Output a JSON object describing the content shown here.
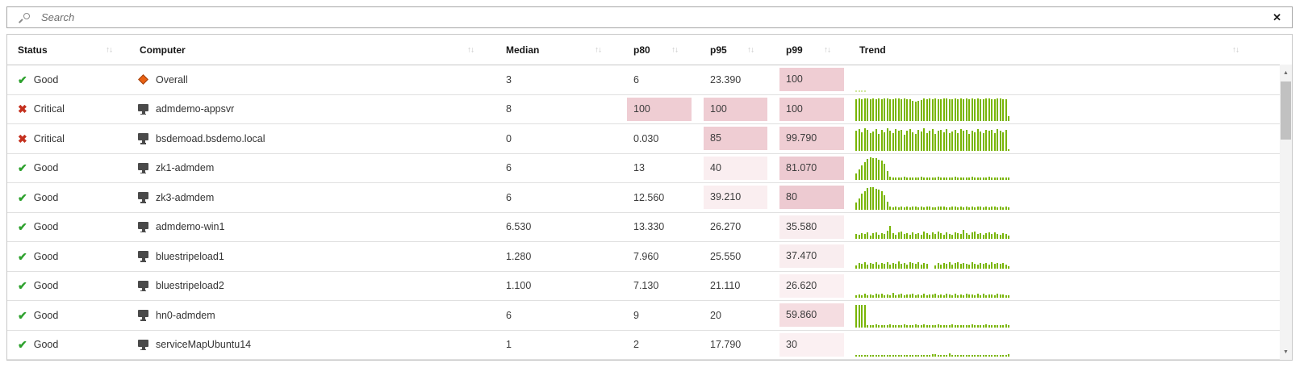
{
  "search": {
    "placeholder": "Search",
    "clear_icon": "✕"
  },
  "colors": {
    "bar_green": "#79b504",
    "bar_green_light": "#cfe79b",
    "heat_deep": "#edcad1",
    "heat_mid": "#f5dde1",
    "heat_light": "#faeef0"
  },
  "scrollbar": {
    "up_glyph": "▲",
    "down_glyph": "▼"
  },
  "table": {
    "sort_glyph": "↑↓",
    "status_glyphs": {
      "good": "✔",
      "critical": "✖"
    },
    "columns": [
      {
        "label": "Status"
      },
      {
        "label": "Computer"
      },
      {
        "label": "Median"
      },
      {
        "label": "p80"
      },
      {
        "label": "p95"
      },
      {
        "label": "p99"
      },
      {
        "label": "Trend"
      }
    ],
    "rows": [
      {
        "status": "Good",
        "kind": "good",
        "icon": "diamond",
        "computer": "Overall",
        "median": "3",
        "p80": {
          "v": "6"
        },
        "p95": {
          "v": "23.390"
        },
        "p99": {
          "v": "100",
          "bg": "#efcdd3"
        },
        "spark": {
          "color": "#cfe79b",
          "values": [
            5,
            5,
            5,
            5,
            0,
            0,
            0,
            0,
            0,
            0,
            0,
            0,
            0,
            0,
            0,
            0,
            0,
            0,
            0,
            0,
            0,
            0,
            0,
            0,
            0,
            0,
            0,
            0,
            0,
            0,
            0,
            0,
            0,
            0,
            0,
            0,
            0,
            0,
            0,
            0,
            0,
            0,
            0,
            0,
            0,
            0,
            0,
            0,
            0,
            0,
            0,
            0,
            0,
            0,
            0
          ]
        }
      },
      {
        "status": "Critical",
        "kind": "critical",
        "icon": "monitor",
        "computer": "admdemo-appsvr",
        "median": "8",
        "p80": {
          "v": "100",
          "bg": "#efcdd3"
        },
        "p95": {
          "v": "100",
          "bg": "#efcdd3"
        },
        "p99": {
          "v": "100",
          "bg": "#efcdd3"
        },
        "spark": {
          "color": "#79b504",
          "values": [
            98,
            100,
            97,
            100,
            99,
            96,
            100,
            98,
            100,
            97,
            99,
            100,
            96,
            98,
            100,
            99,
            97,
            100,
            98,
            96,
            90,
            86,
            88,
            92,
            100,
            98,
            99,
            97,
            100,
            96,
            98,
            100,
            99,
            97,
            98,
            100,
            96,
            99,
            98,
            100,
            97,
            99,
            96,
            100,
            98,
            97,
            99,
            100,
            98,
            96,
            99,
            100,
            97,
            98,
            22
          ]
        }
      },
      {
        "status": "Critical",
        "kind": "critical",
        "icon": "monitor",
        "computer": "bsdemoad.bsdemo.local",
        "median": "0",
        "p80": {
          "v": "0.030"
        },
        "p95": {
          "v": "85",
          "bg": "#efcdd3"
        },
        "p99": {
          "v": "99.790",
          "bg": "#efcdd3"
        },
        "spark": {
          "color": "#79b504",
          "values": [
            88,
            95,
            80,
            100,
            92,
            78,
            85,
            96,
            74,
            90,
            82,
            98,
            88,
            76,
            94,
            86,
            92,
            70,
            88,
            96,
            80,
            74,
            90,
            84,
            98,
            78,
            86,
            94,
            72,
            88,
            92,
            80,
            96,
            76,
            84,
            90,
            78,
            94,
            86,
            92,
            74,
            88,
            80,
            96,
            84,
            78,
            92,
            86,
            90,
            76,
            94,
            88,
            82,
            90,
            4
          ]
        }
      },
      {
        "status": "Good",
        "kind": "good",
        "icon": "monitor",
        "computer": "zk1-admdem",
        "median": "6",
        "p80": {
          "v": "13"
        },
        "p95": {
          "v": "40",
          "bg": "#faeef0"
        },
        "p99": {
          "v": "81.070",
          "bg": "#edcad1"
        },
        "spark": {
          "color": "#79b504",
          "values": [
            28,
            48,
            65,
            80,
            92,
            100,
            98,
            95,
            90,
            84,
            70,
            40,
            14,
            10,
            12,
            9,
            11,
            13,
            10,
            12,
            9,
            11,
            10,
            13,
            11,
            9,
            12,
            10,
            11,
            13,
            9,
            12,
            10,
            11,
            9,
            13,
            11,
            10,
            12,
            9,
            11,
            13,
            10,
            9,
            12,
            11,
            10,
            13,
            9,
            11,
            12,
            10,
            11,
            9,
            10
          ]
        }
      },
      {
        "status": "Good",
        "kind": "good",
        "icon": "monitor",
        "computer": "zk3-admdem",
        "median": "6",
        "p80": {
          "v": "12.560"
        },
        "p95": {
          "v": "39.210",
          "bg": "#faeef0"
        },
        "p99": {
          "v": "80",
          "bg": "#edcad1"
        },
        "spark": {
          "color": "#79b504",
          "values": [
            30,
            50,
            68,
            82,
            95,
            100,
            97,
            92,
            88,
            80,
            62,
            34,
            12,
            9,
            11,
            10,
            13,
            9,
            12,
            10,
            11,
            13,
            9,
            11,
            10,
            12,
            14,
            10,
            9,
            12,
            11,
            13,
            10,
            9,
            11,
            12,
            10,
            13,
            9,
            11,
            10,
            12,
            9,
            13,
            11,
            10,
            12,
            9,
            11,
            13,
            10,
            12,
            9,
            11,
            10
          ]
        }
      },
      {
        "status": "Good",
        "kind": "good",
        "icon": "monitor",
        "computer": "admdemo-win1",
        "median": "6.530",
        "p80": {
          "v": "13.330"
        },
        "p95": {
          "v": "26.270"
        },
        "p99": {
          "v": "35.580",
          "bg": "#f9edef"
        },
        "spark": {
          "color": "#79b504",
          "values": [
            22,
            18,
            25,
            20,
            28,
            16,
            24,
            30,
            19,
            26,
            21,
            35,
            58,
            24,
            18,
            28,
            33,
            20,
            25,
            17,
            29,
            22,
            26,
            19,
            31,
            24,
            18,
            27,
            21,
            33,
            25,
            19,
            28,
            23,
            17,
            30,
            26,
            21,
            38,
            24,
            19,
            29,
            33,
            22,
            26,
            18,
            25,
            30,
            20,
            27,
            23,
            19,
            26,
            22,
            16
          ]
        }
      },
      {
        "status": "Good",
        "kind": "good",
        "icon": "monitor",
        "computer": "bluestripeload1",
        "median": "1.280",
        "p80": {
          "v": "7.960"
        },
        "p95": {
          "v": "25.550"
        },
        "p99": {
          "v": "37.470",
          "bg": "#f9edef"
        },
        "spark": {
          "color": "#79b504",
          "values": [
            14,
            22,
            18,
            26,
            15,
            24,
            19,
            28,
            16,
            23,
            20,
            27,
            17,
            25,
            21,
            29,
            18,
            24,
            16,
            26,
            22,
            19,
            27,
            15,
            23,
            20,
            0,
            0,
            12,
            25,
            17,
            24,
            19,
            28,
            16,
            22,
            26,
            18,
            24,
            20,
            15,
            27,
            21,
            17,
            25,
            19,
            23,
            16,
            26,
            20,
            24,
            18,
            22,
            15,
            8
          ]
        }
      },
      {
        "status": "Good",
        "kind": "good",
        "icon": "monitor",
        "computer": "bluestripeload2",
        "median": "1.100",
        "p80": {
          "v": "7.130"
        },
        "p95": {
          "v": "21.110"
        },
        "p99": {
          "v": "26.620",
          "bg": "#fbf0f2"
        },
        "spark": {
          "color": "#79b504",
          "values": [
            10,
            16,
            12,
            18,
            9,
            15,
            11,
            19,
            13,
            17,
            10,
            16,
            12,
            20,
            9,
            14,
            18,
            11,
            16,
            13,
            19,
            10,
            15,
            12,
            17,
            9,
            16,
            13,
            18,
            11,
            15,
            10,
            19,
            14,
            12,
            17,
            9,
            16,
            11,
            18,
            13,
            15,
            10,
            17,
            12,
            19,
            9,
            14,
            16,
            11,
            18,
            13,
            15,
            10,
            12
          ]
        }
      },
      {
        "status": "Good",
        "kind": "good",
        "icon": "monitor",
        "computer": "hn0-admdem",
        "median": "6",
        "p80": {
          "v": "9"
        },
        "p95": {
          "v": "20"
        },
        "p99": {
          "v": "59.860",
          "bg": "#f5dde1"
        },
        "spark": {
          "color": "#79b504",
          "values": [
            100,
            100,
            100,
            100,
            8,
            10,
            9,
            11,
            8,
            10,
            9,
            8,
            11,
            9,
            10,
            8,
            9,
            11,
            8,
            10,
            9,
            13,
            10,
            8,
            11,
            9,
            10,
            8,
            9,
            11,
            8,
            10,
            9,
            8,
            11,
            9,
            10,
            8,
            9,
            10,
            8,
            11,
            9,
            10,
            8,
            9,
            11,
            8,
            10,
            9,
            8,
            10,
            9,
            11,
            8
          ]
        }
      },
      {
        "status": "Good",
        "kind": "good",
        "icon": "monitor",
        "computer": "serviceMapUbuntu14",
        "median": "1",
        "p80": {
          "v": "2"
        },
        "p95": {
          "v": "17.790"
        },
        "p99": {
          "v": "30",
          "bg": "#fbf0f2"
        },
        "spark": {
          "color": "#79b504",
          "values": [
            7,
            7,
            8,
            7,
            7,
            8,
            7,
            7,
            8,
            7,
            7,
            8,
            7,
            7,
            8,
            7,
            7,
            8,
            7,
            7,
            8,
            7,
            7,
            8,
            7,
            7,
            8,
            12,
            9,
            7,
            8,
            7,
            7,
            13,
            8,
            7,
            7,
            8,
            7,
            7,
            8,
            7,
            7,
            8,
            7,
            7,
            8,
            7,
            7,
            8,
            7,
            7,
            8,
            7,
            10
          ]
        }
      }
    ]
  }
}
